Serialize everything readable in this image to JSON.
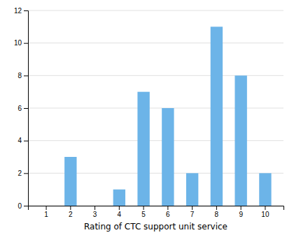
{
  "chart_data": {
    "type": "bar",
    "xlabel": "Rating of CTC support unit service",
    "categories": [
      1,
      2,
      3,
      4,
      5,
      6,
      7,
      8,
      9,
      10
    ],
    "values": [
      0,
      3,
      0,
      1,
      7,
      6,
      2,
      11,
      8,
      2
    ],
    "color": "#6cb4e8",
    "ylim": [
      0,
      12
    ],
    "yticks": [
      0,
      2,
      4,
      6,
      8,
      10,
      12
    ],
    "grid": true
  }
}
